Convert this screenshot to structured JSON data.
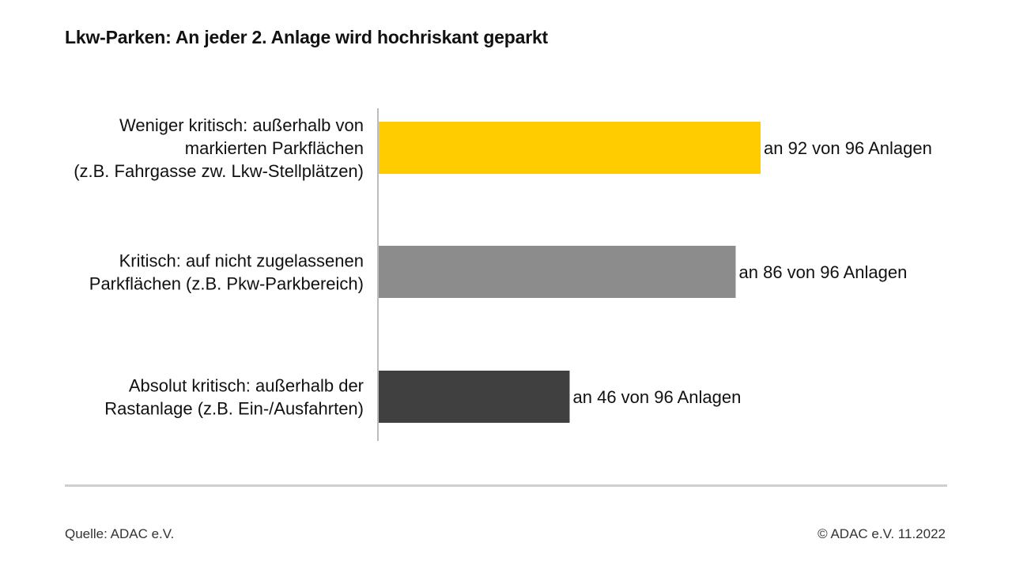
{
  "title": "Lkw-Parken: An jeder 2. Anlage wird hochriskant geparkt",
  "chart_data": {
    "type": "bar",
    "orientation": "horizontal",
    "categories": [
      [
        "Weniger kritisch: außerhalb von",
        "markierten Parkflächen",
        "(z.B. Fahrgasse zw. Lkw-Stellplätzen)"
      ],
      [
        "Kritisch: auf nicht zugelassenen",
        "Parkflächen (z.B. Pkw-Parkbereich)"
      ],
      [
        "Absolut kritisch: außerhalb der",
        "Rastanlage (z.B. Ein-/Ausfahrten)"
      ]
    ],
    "values": [
      92,
      86,
      46
    ],
    "data_labels": [
      "an 92 von 96 Anlagen",
      "an 86 von 96 Anlagen",
      "an 46 von 96 Anlagen"
    ],
    "colors": [
      "#ffcc00",
      "#8c8c8c",
      "#404040"
    ],
    "xlim": [
      0,
      96
    ],
    "grid": false,
    "legend": "none"
  },
  "footer": {
    "source": "Quelle: ADAC e.V.",
    "copyright": "© ADAC e.V. 11.2022"
  }
}
